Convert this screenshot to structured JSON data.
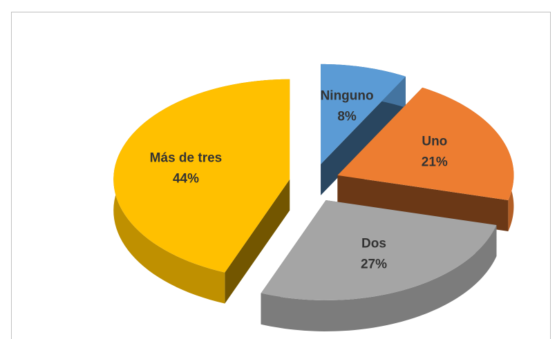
{
  "chart_data": {
    "type": "pie",
    "categories": [
      "Ninguno",
      "Uno",
      "Dos",
      "Más de tres"
    ],
    "values": [
      8,
      21,
      27,
      44
    ],
    "value_labels": [
      "8%",
      "21%",
      "27%",
      "44%"
    ],
    "colors": [
      "#5b9bd5",
      "#ed7d31",
      "#a5a5a5",
      "#ffc000"
    ]
  }
}
